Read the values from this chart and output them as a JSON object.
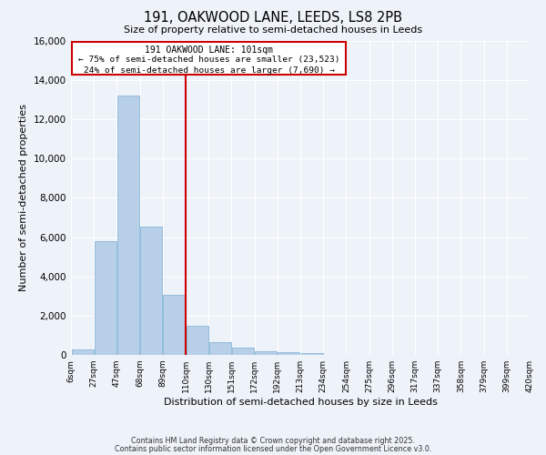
{
  "title": "191, OAKWOOD LANE, LEEDS, LS8 2PB",
  "subtitle": "Size of property relative to semi-detached houses in Leeds",
  "xlabel": "Distribution of semi-detached houses by size in Leeds",
  "ylabel": "Number of semi-detached properties",
  "bin_labels": [
    "6sqm",
    "27sqm",
    "47sqm",
    "68sqm",
    "89sqm",
    "110sqm",
    "130sqm",
    "151sqm",
    "172sqm",
    "192sqm",
    "213sqm",
    "234sqm",
    "254sqm",
    "275sqm",
    "296sqm",
    "317sqm",
    "337sqm",
    "358sqm",
    "379sqm",
    "399sqm",
    "420sqm"
  ],
  "bar_heights": [
    300,
    5800,
    13200,
    6550,
    3050,
    1500,
    650,
    350,
    200,
    150,
    80,
    0,
    0,
    0,
    0,
    0,
    0,
    0,
    0,
    0
  ],
  "bar_color": "#b8cfe8",
  "bar_edgecolor": "#7aafd4",
  "annotation_title": "191 OAKWOOD LANE: 101sqm",
  "annotation_line1": "← 75% of semi-detached houses are smaller (23,523)",
  "annotation_line2": "24% of semi-detached houses are larger (7,690) →",
  "annotation_box_color": "#cc0000",
  "vline_color": "#cc0000",
  "ylim": [
    0,
    16000
  ],
  "yticks": [
    0,
    2000,
    4000,
    6000,
    8000,
    10000,
    12000,
    14000,
    16000
  ],
  "bg_color": "#eef2f9",
  "footer1": "Contains HM Land Registry data © Crown copyright and database right 2025.",
  "footer2": "Contains public sector information licensed under the Open Government Licence v3.0."
}
